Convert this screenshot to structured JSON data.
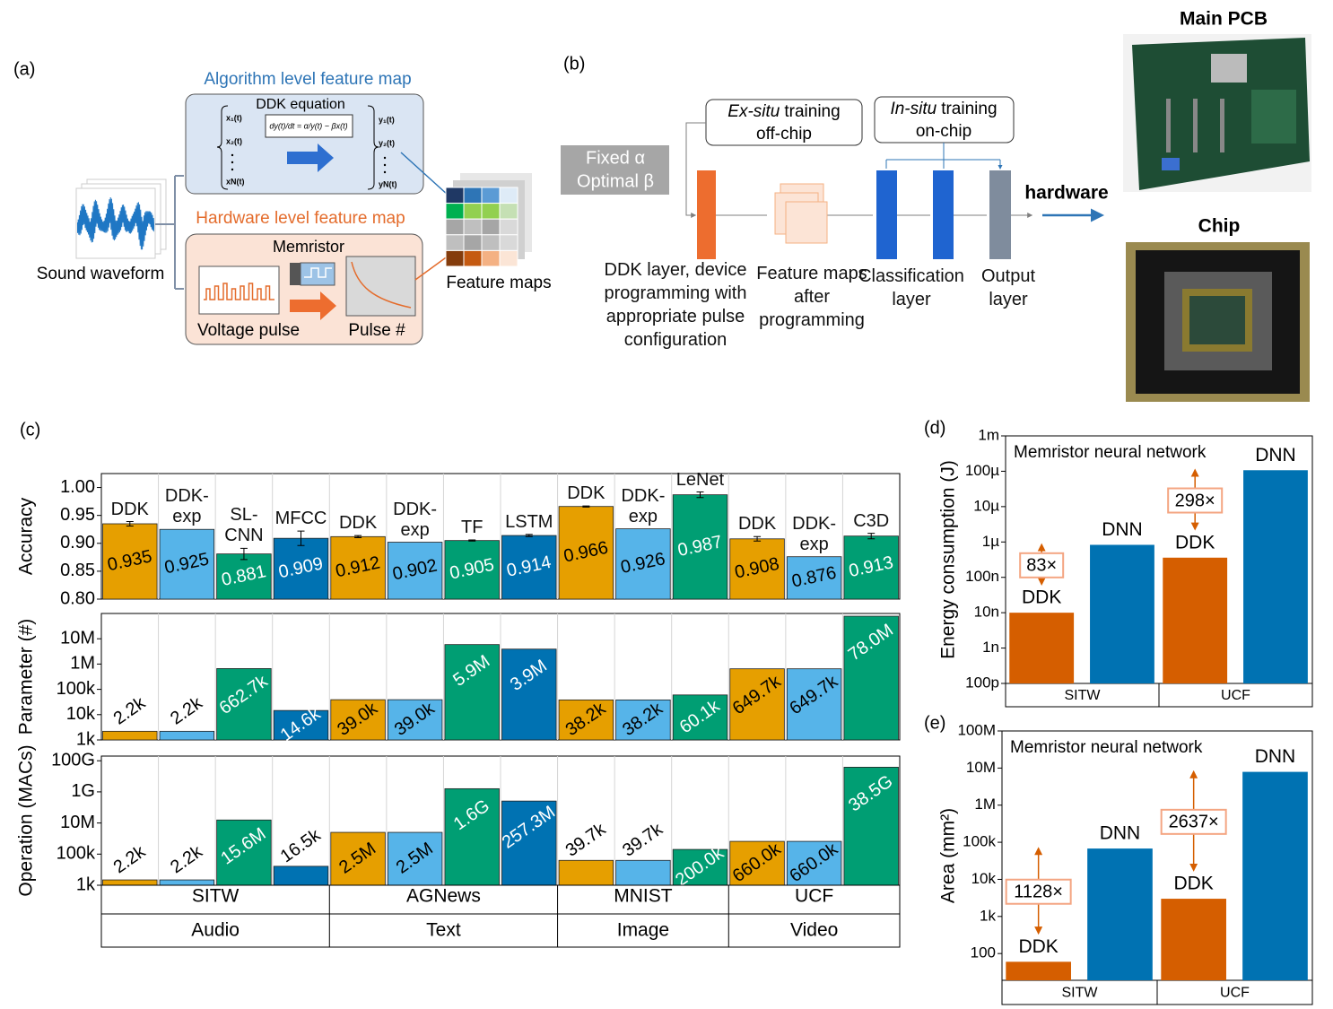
{
  "diagram_a": {
    "label": "(a)",
    "algorithm_title": "Algorithm level feature map",
    "equation_title": "DDK equation",
    "equation": "dy(t)/dt = α/y(t) − βx(t)",
    "inputs": [
      "x₁(t)",
      "x₂(t)",
      "xN(t)"
    ],
    "outputs": [
      "y₁(t)",
      "y₂(t)",
      "yN(t)"
    ],
    "hardware_title": "Hardware level feature map",
    "device": "Memristor",
    "pulse_plot": "Voltage pulse",
    "response_plot": "Pulse #",
    "input": "Sound waveform",
    "output": "Feature maps"
  },
  "diagram_b": {
    "label": "(b)",
    "fixed": [
      "Fixed α",
      "Optimal β"
    ],
    "ex_situ": {
      "emph": "Ex-situ",
      "rest": "training",
      "line2": "off-chip"
    },
    "in_situ": {
      "emph": "In-situ",
      "rest": "training",
      "line2": "on-chip"
    },
    "layers": [
      "DDK layer, device programming with appropriate pulse configuration",
      "Feature maps after programming",
      "Classification layer",
      "Output layer"
    ],
    "target": "hardware"
  },
  "photos": {
    "pcb": "Main PCB",
    "chip": "Chip"
  },
  "panel_c": {
    "label": "(c)",
    "groups": [
      {
        "dataset": "SITW",
        "modality": "Audio",
        "models": [
          "DDK",
          "DDK-exp",
          "SL-CNN",
          "MFCC"
        ]
      },
      {
        "dataset": "AGNews",
        "modality": "Text",
        "models": [
          "DDK",
          "DDK-exp",
          "TF",
          "LSTM"
        ]
      },
      {
        "dataset": "MNIST",
        "modality": "Image",
        "models": [
          "DDK",
          "DDK-exp",
          "LeNet"
        ]
      },
      {
        "dataset": "UCF",
        "modality": "Video",
        "models": [
          "DDK",
          "DDK-exp",
          "C3D"
        ]
      }
    ],
    "colors": [
      "#E69F00",
      "#56B4E9",
      "#009E73",
      "#0072B2",
      "#E69F00",
      "#56B4E9",
      "#009E73",
      "#0072B2",
      "#E69F00",
      "#56B4E9",
      "#009E73",
      "#E69F00",
      "#56B4E9",
      "#009E73"
    ]
  },
  "chart_data": [
    {
      "type": "bar",
      "ylabel": "Accuracy",
      "values": [
        0.935,
        0.925,
        0.881,
        0.909,
        0.912,
        0.902,
        0.905,
        0.914,
        0.966,
        0.926,
        0.987,
        0.908,
        0.876,
        0.913
      ],
      "errors": [
        0.004,
        null,
        0.01,
        0.013,
        0.002,
        null,
        0.001,
        0.002,
        0.001,
        null,
        0.005,
        0.004,
        null,
        0.005
      ],
      "ylim": [
        0.8,
        1.025
      ],
      "yticks": [
        {
          "value": 0.8,
          "label": "0.80"
        },
        0.85,
        {
          "value": 0.9,
          "label": "0.90"
        },
        0.95,
        {
          "value": 1,
          "label": "1.00"
        }
      ]
    },
    {
      "type": "bar",
      "ylabel": "Parameter (#)",
      "yscale": "log",
      "values": [
        2200,
        2200,
        662700,
        14600,
        39000,
        39000,
        5900000,
        3900000,
        38200,
        38200,
        60100,
        649700,
        649700,
        78000000
      ],
      "value_labels": [
        "2.2k",
        "2.2k",
        "662.7k",
        "14.6k",
        "39.0k",
        "39.0k",
        "5.9M",
        "3.9M",
        "38.2k",
        "38.2k",
        "60.1k",
        "649.7k",
        "649.7k",
        "78.0M"
      ],
      "ylim": [
        1000,
        100000000
      ],
      "yticks": [
        {
          "value": 1000,
          "label": "1k"
        },
        {
          "value": 10000,
          "label": "10k"
        },
        {
          "value": 100000,
          "label": "100k"
        },
        {
          "value": 1000000,
          "label": "1M"
        },
        {
          "value": 10000000,
          "label": "10M"
        }
      ]
    },
    {
      "type": "bar",
      "ylabel": "Operation (MACs)",
      "yscale": "log",
      "values": [
        2200,
        2200,
        15600000,
        16500,
        2500000,
        2500000,
        1600000000,
        257300000,
        39700,
        39700,
        200000,
        660000,
        660000,
        38500000000
      ],
      "value_labels": [
        "2.2k",
        "2.2k",
        "15.6M",
        "16.5k",
        "2.5M",
        "2.5M",
        "1.6G",
        "257.3M",
        "39.7k",
        "39.7k",
        "200.0k",
        "660.0k",
        "660.0k",
        "38.5G"
      ],
      "ylim": [
        1000,
        200000000000
      ],
      "yticks": [
        {
          "value": 1000,
          "label": "1k"
        },
        {
          "value": 100000,
          "label": "100k"
        },
        {
          "value": 10000000,
          "label": "10M"
        },
        {
          "value": 1000000000,
          "label": "1G"
        },
        {
          "value": 100000000000,
          "label": "100G"
        }
      ]
    },
    {
      "type": "bar",
      "label": "(d)",
      "title": "Memristor neural network",
      "ylabel": "Energy consumption (J)",
      "yscale": "log",
      "categories": [
        "SITW",
        "UCF"
      ],
      "series": [
        {
          "name": "DDK",
          "color": "#D55E00",
          "values": [
            1e-08,
            3.6e-07
          ]
        },
        {
          "name": "DNN",
          "color": "#0072B2",
          "values": [
            8.3e-07,
            0.000107
          ]
        }
      ],
      "annotations": [
        "83×",
        "298×"
      ],
      "ylim": [
        1e-10,
        0.001
      ],
      "yticks": [
        {
          "value": 1e-10,
          "label": "100p"
        },
        {
          "value": 1e-09,
          "label": "1n"
        },
        {
          "value": 1e-08,
          "label": "10n"
        },
        {
          "value": 1e-07,
          "label": "100n"
        },
        {
          "value": 1e-06,
          "label": "1µ"
        },
        {
          "value": 1e-05,
          "label": "10µ"
        },
        {
          "value": 0.0001,
          "label": "100µ"
        },
        {
          "value": 0.001,
          "label": "1m"
        }
      ]
    },
    {
      "type": "bar",
      "label": "(e)",
      "title": "Memristor neural network",
      "ylabel": "Area (mm²)",
      "yscale": "log",
      "categories": [
        "SITW",
        "UCF"
      ],
      "series": [
        {
          "name": "DDK",
          "color": "#D55E00",
          "values": [
            60,
            3000
          ]
        },
        {
          "name": "DNN",
          "color": "#0072B2",
          "values": [
            67680,
            7900000
          ]
        }
      ],
      "annotations": [
        "1128×",
        "2637×"
      ],
      "ylim": [
        19,
        100000000
      ],
      "yticks": [
        100,
        {
          "value": 1000,
          "label": "1k"
        },
        {
          "value": 10000,
          "label": "10k"
        },
        {
          "value": 100000,
          "label": "100k"
        },
        {
          "value": 1000000,
          "label": "1M"
        },
        {
          "value": 10000000,
          "label": "10M"
        },
        {
          "value": 100000000,
          "label": "100M"
        }
      ]
    }
  ]
}
